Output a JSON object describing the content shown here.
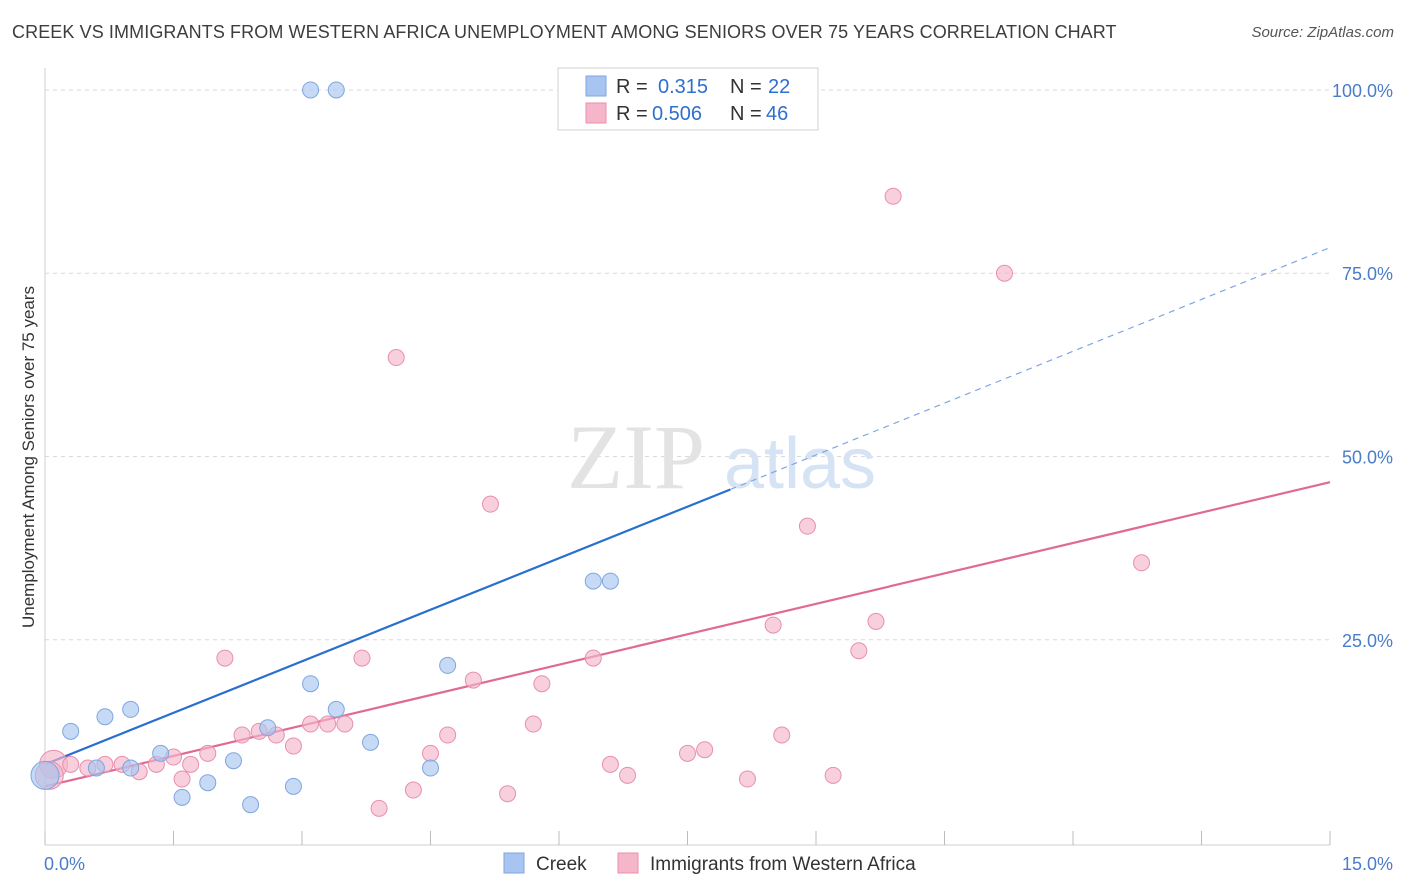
{
  "title": "CREEK VS IMMIGRANTS FROM WESTERN AFRICA UNEMPLOYMENT AMONG SENIORS OVER 75 YEARS CORRELATION CHART",
  "source": "Source: ZipAtlas.com",
  "watermark": {
    "zip": "ZIP",
    "atlas": "atlas"
  },
  "legend": {
    "r_label": "R =",
    "n_label": "N =",
    "rows": [
      {
        "series": "Creek",
        "r": "0.315",
        "n": "22"
      },
      {
        "series": "Immigrants from Western Africa",
        "r": "0.506",
        "n": "46"
      }
    ]
  },
  "chart_data": {
    "type": "scatter",
    "title": "CREEK VS IMMIGRANTS FROM WESTERN AFRICA UNEMPLOYMENT AMONG SENIORS OVER 75 YEARS CORRELATION CHART",
    "xlabel": "",
    "ylabel": "Unemployment Among Seniors over 75 years",
    "xlim": [
      0,
      15
    ],
    "ylim": [
      -3,
      103
    ],
    "x_ticks": [
      0,
      15
    ],
    "x_tick_labels": [
      "0.0%",
      "15.0%"
    ],
    "y_ticks": [
      25,
      50,
      75,
      100
    ],
    "y_tick_labels": [
      "25.0%",
      "50.0%",
      "75.0%",
      "100.0%"
    ],
    "grid": true,
    "legend_position": "top-center",
    "colors": {
      "Creek": "#a7c5f0",
      "Creek_line": "#2a6fd0",
      "Immigrants": "#f5b6c9",
      "Immigrants_line": "#e06a94"
    },
    "series": [
      {
        "name": "Creek",
        "points": [
          [
            0.0,
            6.5
          ],
          [
            0.3,
            12.5
          ],
          [
            0.6,
            7.5
          ],
          [
            0.7,
            14.5
          ],
          [
            1.0,
            15.5
          ],
          [
            1.35,
            9.5
          ],
          [
            1.6,
            3.5
          ],
          [
            1.9,
            5.5
          ],
          [
            2.2,
            8.5
          ],
          [
            2.4,
            2.5
          ],
          [
            2.6,
            13.0
          ],
          [
            2.9,
            5.0
          ],
          [
            3.1,
            19.0
          ],
          [
            3.4,
            15.5
          ],
          [
            3.8,
            11.0
          ],
          [
            4.5,
            7.5
          ],
          [
            4.7,
            21.5
          ],
          [
            6.4,
            33.0
          ],
          [
            6.6,
            33.0
          ],
          [
            3.1,
            100.0
          ],
          [
            3.4,
            100.0
          ],
          [
            1.0,
            7.5
          ]
        ],
        "trend": {
          "x0": 0.0,
          "y0": 8.0,
          "x1": 8.0,
          "y1": 45.5,
          "dashed_to_x": 15.0,
          "dashed_to_y": 78.5
        }
      },
      {
        "name": "Immigrants from Western Africa",
        "points": [
          [
            0.1,
            8.0
          ],
          [
            0.3,
            8.0
          ],
          [
            0.5,
            7.5
          ],
          [
            0.7,
            8.0
          ],
          [
            0.9,
            8.0
          ],
          [
            1.1,
            7.0
          ],
          [
            1.3,
            8.0
          ],
          [
            1.5,
            9.0
          ],
          [
            1.7,
            8.0
          ],
          [
            1.9,
            9.5
          ],
          [
            2.1,
            22.5
          ],
          [
            2.3,
            12.0
          ],
          [
            2.5,
            12.5
          ],
          [
            2.7,
            12.0
          ],
          [
            2.9,
            10.5
          ],
          [
            3.1,
            13.5
          ],
          [
            3.3,
            13.5
          ],
          [
            3.5,
            13.5
          ],
          [
            3.7,
            22.5
          ],
          [
            3.9,
            2.0
          ],
          [
            4.1,
            63.5
          ],
          [
            4.3,
            4.5
          ],
          [
            4.5,
            9.5
          ],
          [
            4.7,
            12.0
          ],
          [
            5.0,
            19.5
          ],
          [
            5.2,
            43.5
          ],
          [
            5.4,
            4.0
          ],
          [
            5.7,
            13.5
          ],
          [
            5.8,
            19.0
          ],
          [
            6.4,
            22.5
          ],
          [
            6.6,
            8.0
          ],
          [
            6.8,
            6.5
          ],
          [
            7.5,
            9.5
          ],
          [
            7.7,
            10.0
          ],
          [
            8.2,
            6.0
          ],
          [
            8.5,
            27.0
          ],
          [
            8.6,
            12.0
          ],
          [
            8.9,
            40.5
          ],
          [
            9.2,
            6.5
          ],
          [
            9.5,
            23.5
          ],
          [
            9.7,
            27.5
          ],
          [
            9.9,
            85.5
          ],
          [
            11.2,
            75.0
          ],
          [
            12.8,
            35.5
          ],
          [
            0.05,
            6.5
          ],
          [
            1.6,
            6.0
          ]
        ],
        "trend": {
          "x0": 0.0,
          "y0": 5.0,
          "x1": 15.0,
          "y1": 46.5
        }
      }
    ]
  }
}
